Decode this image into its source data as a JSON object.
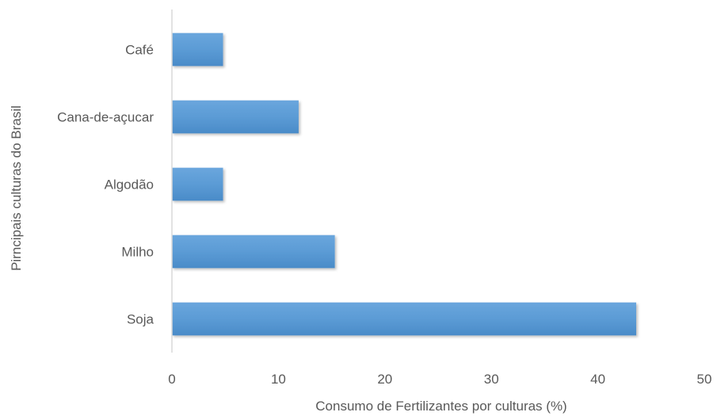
{
  "chart_data": {
    "type": "bar",
    "orientation": "horizontal",
    "categories": [
      "Café",
      "Cana-de-açucar",
      "Algodão",
      "Milho",
      "Soja"
    ],
    "values": [
      4.8,
      11.9,
      4.8,
      15.3,
      43.6
    ],
    "xlabel": "Consumo de Fertilizantes por culturas (%)",
    "ylabel": "Pirncipais culturas do Brasil",
    "xlim": [
      0,
      50
    ],
    "xticks": [
      0,
      10,
      20,
      30,
      40,
      50
    ],
    "grid": false,
    "legend": "none",
    "bar_color": "#5b9bd5"
  }
}
